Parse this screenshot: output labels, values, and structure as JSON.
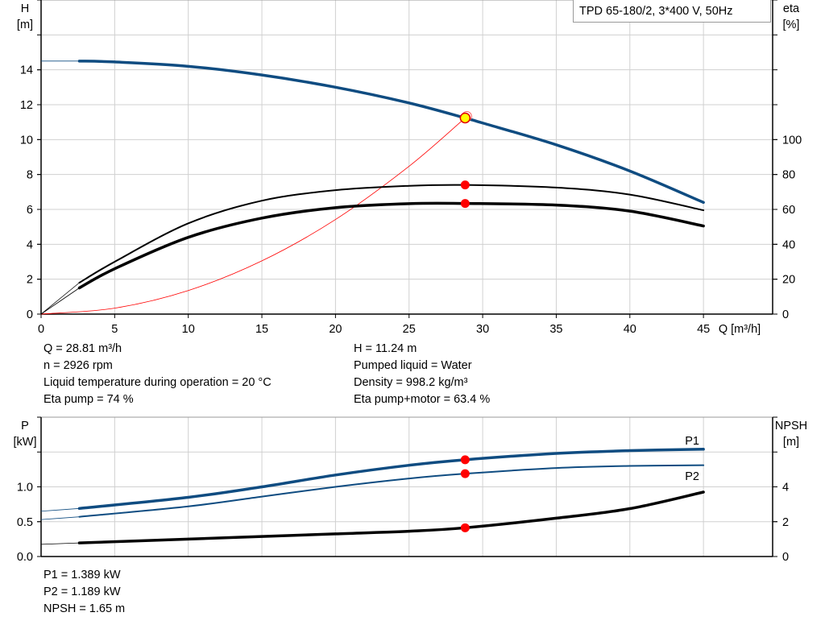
{
  "chart_data": [
    {
      "type": "line",
      "title": "TPD 65-180/2, 3*400 V, 50Hz",
      "xlabel": "Q [m³/h]",
      "ylabel_left": "H\n[m]",
      "ylabel_right": "eta\n[%]",
      "left_axis": {
        "label_line1": "H",
        "label_line2": "[m]",
        "range": [
          0,
          18
        ],
        "ticks": [
          0,
          2,
          4,
          6,
          8,
          10,
          12,
          14
        ]
      },
      "right_axis": {
        "label_line1": "eta",
        "label_line2": "[%]",
        "range": [
          0,
          180
        ],
        "ticks": [
          0,
          20,
          40,
          60,
          80,
          100
        ]
      },
      "x_axis": {
        "label": "Q [m³/h]",
        "range": [
          0,
          49.7
        ],
        "ticks": [
          0,
          5,
          10,
          15,
          20,
          25,
          30,
          35,
          40,
          45
        ]
      },
      "grid": true,
      "series": [
        {
          "id": "H",
          "axis": "left",
          "color": "#0f4c81",
          "x": [
            0,
            2.6,
            5,
            10,
            15,
            20,
            25,
            28.81,
            30,
            35,
            40,
            45
          ],
          "y": [
            14.5,
            14.5,
            14.45,
            14.2,
            13.7,
            13.0,
            12.1,
            11.24,
            10.95,
            9.7,
            8.2,
            6.4
          ]
        },
        {
          "id": "eta_pump",
          "axis": "right",
          "color": "#000000",
          "x": [
            0,
            2.6,
            5,
            10,
            15,
            20,
            25,
            28.81,
            35,
            40,
            45
          ],
          "y": [
            0,
            18,
            30,
            52,
            65,
            71,
            73.5,
            74,
            72.5,
            68.5,
            59.5
          ]
        },
        {
          "id": "eta_pump_motor",
          "axis": "right",
          "color": "#000000",
          "x": [
            0,
            2.6,
            5,
            10,
            15,
            20,
            25,
            28.81,
            35,
            40,
            45
          ],
          "y": [
            0,
            15,
            26,
            44,
            55,
            61,
            63.3,
            63.4,
            62.5,
            59,
            50.5
          ]
        },
        {
          "id": "system_curve",
          "axis": "left",
          "color": "#ff0000",
          "x": [
            0,
            5,
            10,
            15,
            20,
            25,
            28.81
          ],
          "y": [
            0,
            0.34,
            1.35,
            3.05,
            5.42,
            8.47,
            11.24
          ]
        }
      ],
      "operating_point": {
        "Q": 28.81,
        "H": 11.24,
        "eta_pump": 74,
        "eta_pump_motor": 63.4
      }
    },
    {
      "type": "line",
      "left_axis": {
        "label_line1": "P",
        "label_line2": "[kW]",
        "range": [
          0,
          2.0
        ],
        "ticks": [
          "0.0",
          "0.5",
          "1.0"
        ]
      },
      "right_axis": {
        "label_line1": "NPSH",
        "label_line2": "[m]",
        "range": [
          0,
          8
        ],
        "ticks": [
          0,
          2,
          4
        ]
      },
      "grid": true,
      "series": [
        {
          "id": "P1",
          "name": "P1",
          "axis": "left",
          "color": "#0f4c81",
          "x": [
            0,
            2.6,
            10,
            15,
            20,
            25,
            28.81,
            35,
            40,
            45
          ],
          "y": [
            0.65,
            0.69,
            0.85,
            1.0,
            1.17,
            1.31,
            1.389,
            1.48,
            1.52,
            1.54
          ]
        },
        {
          "id": "P2",
          "name": "P2",
          "axis": "left",
          "color": "#0f4c81",
          "x": [
            0,
            2.6,
            10,
            15,
            20,
            25,
            28.81,
            35,
            40,
            45
          ],
          "y": [
            0.53,
            0.57,
            0.72,
            0.86,
            1.0,
            1.12,
            1.189,
            1.27,
            1.3,
            1.31
          ]
        },
        {
          "id": "NPSH",
          "axis": "right",
          "color": "#000000",
          "x": [
            0,
            2.6,
            10,
            15,
            20,
            25,
            28.81,
            35,
            40,
            45
          ],
          "y": [
            0.7,
            0.78,
            1.0,
            1.15,
            1.3,
            1.45,
            1.65,
            2.2,
            2.75,
            3.7
          ]
        }
      ],
      "operating_point": {
        "Q": 28.81,
        "P1": 1.389,
        "P2": 1.189,
        "NPSH": 1.65
      }
    }
  ],
  "info": {
    "left": [
      "Q = 28.81 m³/h",
      "n = 2926 rpm",
      "Liquid temperature during operation = 20 °C",
      "Eta pump = 74 %"
    ],
    "right": [
      "H = 11.24 m",
      "Pumped liquid = Water",
      "Density = 998.2 kg/m³",
      "Eta pump+motor = 63.4 %"
    ],
    "bottom": [
      "P1 = 1.389 kW",
      "P2 = 1.189 kW",
      "NPSH = 1.65 m"
    ]
  }
}
